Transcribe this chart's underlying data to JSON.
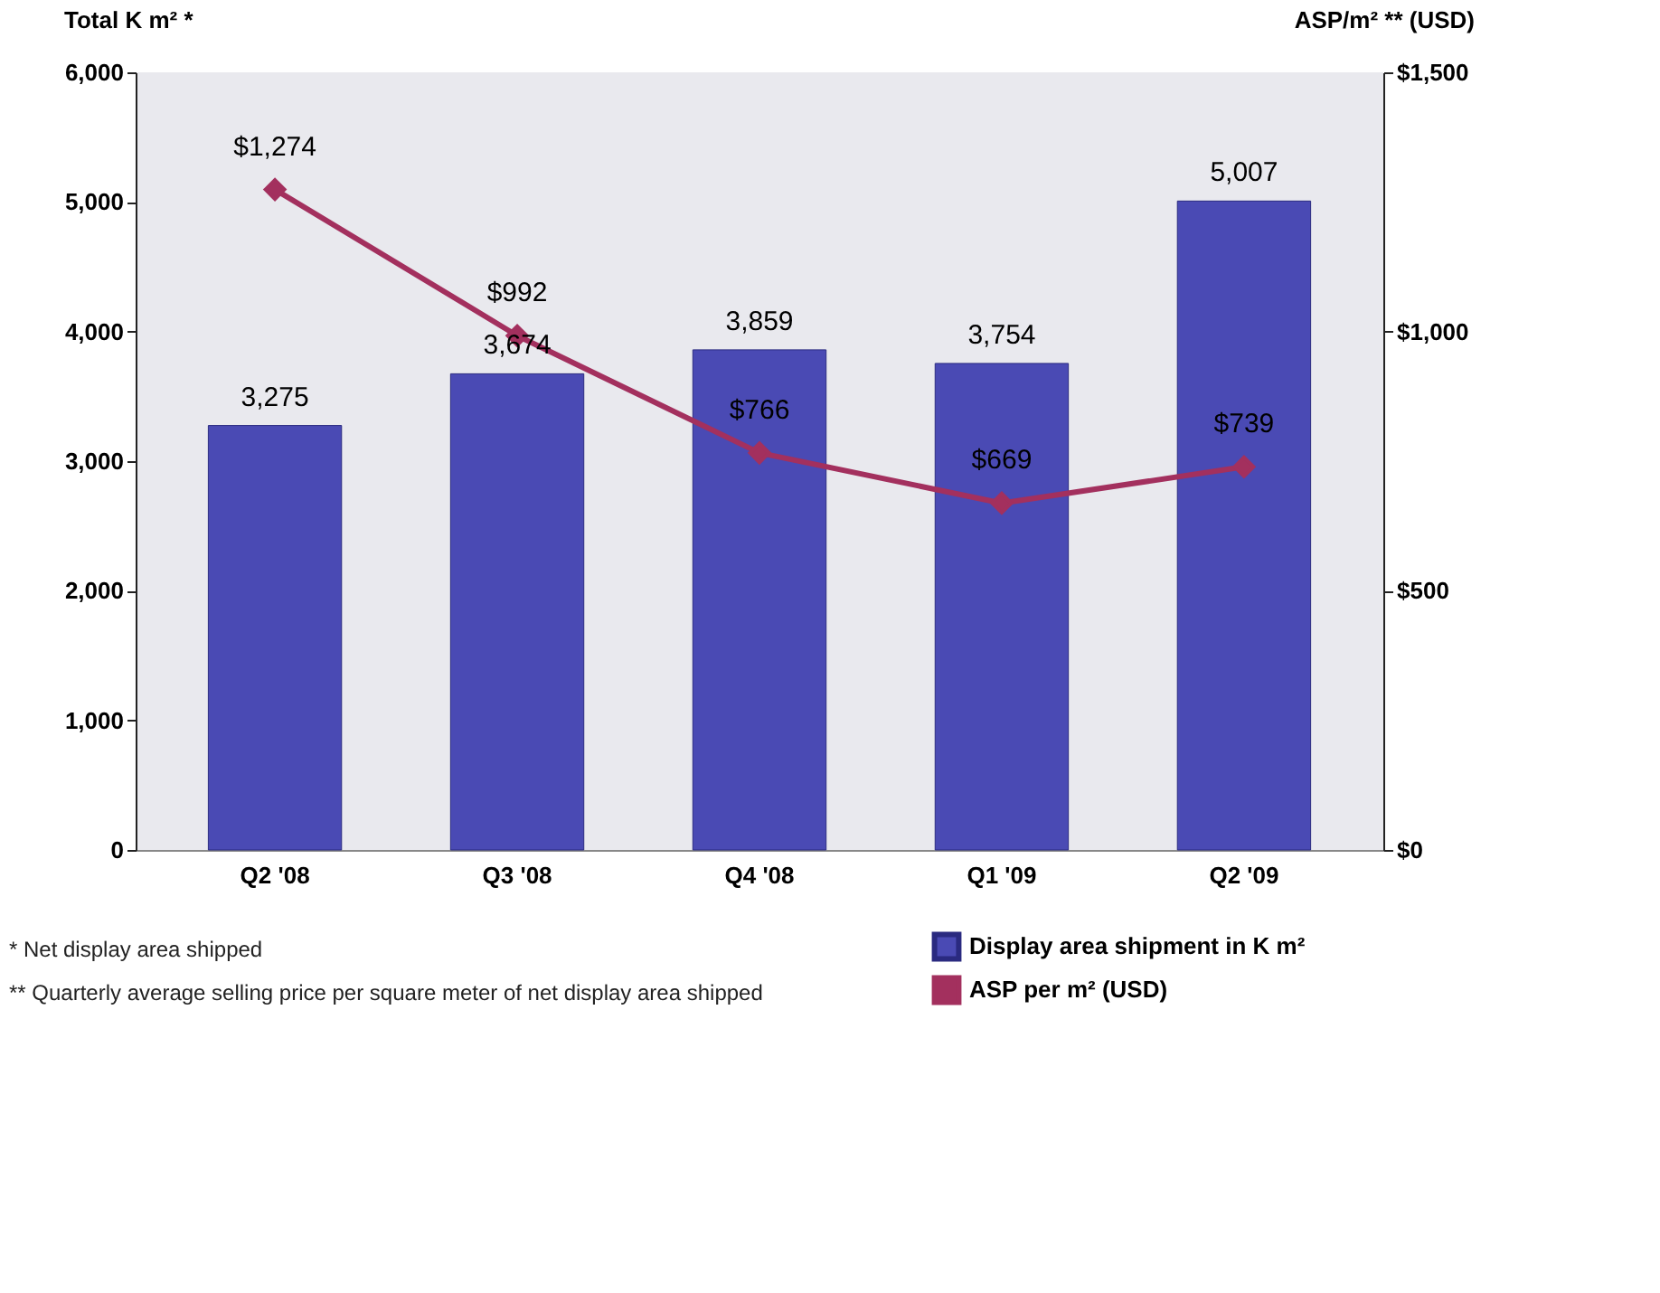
{
  "chart_data": {
    "type": "bar",
    "ylabel": "Total K m² *",
    "y2label": "ASP/m² ** (USD)",
    "categories": [
      "Q2 '08",
      "Q3 '08",
      "Q4 '08",
      "Q1 '09",
      "Q2 '09"
    ],
    "series": [
      {
        "name": "Display area shipment in K m²",
        "color": "#4a4ab4",
        "values": [
          3275,
          3674,
          3859,
          3754,
          5007
        ],
        "value_labels": [
          "3,275",
          "3,674",
          "3,859",
          "3,754",
          "5,007"
        ]
      },
      {
        "name": "ASP per m² (USD)",
        "type": "line",
        "axis": "y2",
        "color": "#a3305e",
        "marker": "diamond",
        "line_style": "solid",
        "values": [
          1274,
          992,
          766,
          669,
          739
        ],
        "value_labels": [
          "$1,274",
          "$992",
          "$766",
          "$669",
          "$739"
        ]
      }
    ],
    "ylim": [
      0,
      6000
    ],
    "yticks": [
      0,
      {
        "value": 1000,
        "label": "1,000"
      },
      {
        "value": 2000,
        "label": "2,000"
      },
      {
        "value": 3000,
        "label": "3,000"
      },
      {
        "value": 4000,
        "label": "4,000"
      },
      {
        "value": 5000,
        "label": "5,000"
      },
      {
        "value": 6000,
        "label": "6,000"
      }
    ],
    "y2lim": [
      0,
      1500
    ],
    "y2ticks": [
      {
        "value": 0,
        "label": "$0"
      },
      {
        "value": 500,
        "label": "$500"
      },
      {
        "value": 1000,
        "label": "$1,000"
      },
      {
        "value": 1500,
        "label": "$1,500"
      }
    ],
    "grid": false,
    "legend": "bottom right",
    "annotations": [
      "*  Net display area shipped",
      "** Quarterly average selling price per square meter of net display area shipped"
    ]
  }
}
